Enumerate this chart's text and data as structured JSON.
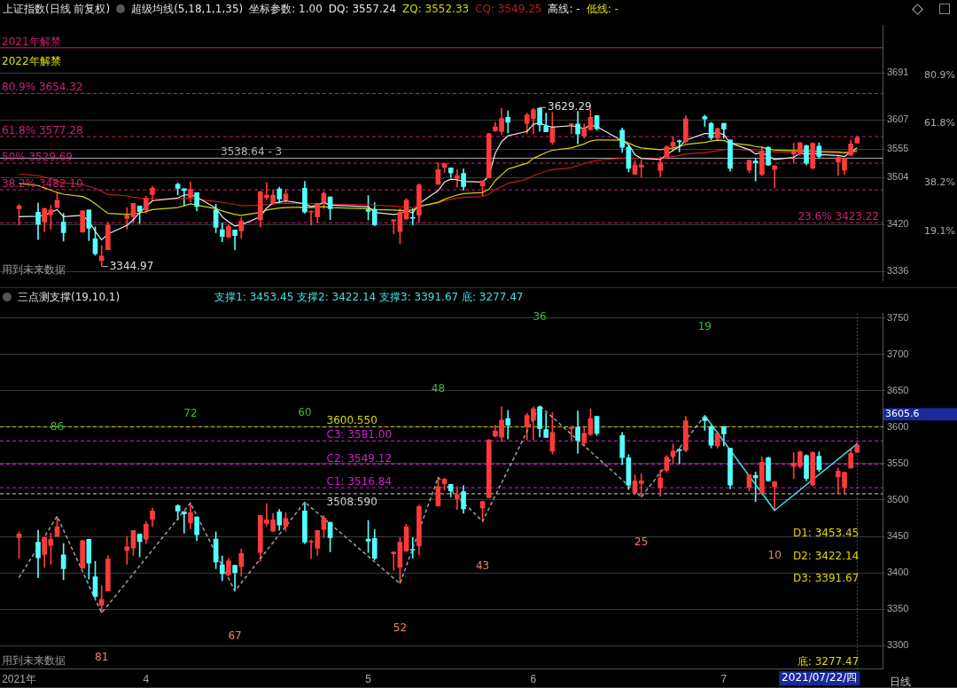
{
  "chart_data": [
    {
      "type": "candlestick",
      "title": "上证指数(日线 前复权)",
      "subtitle": "超级均线(5,18,1,1,35)",
      "x": [
        "2021-03-12",
        "2021-03-15",
        "2021-03-16",
        "2021-03-17",
        "2021-03-18",
        "2021-03-19",
        "2021-03-22",
        "2021-03-23",
        "2021-03-24",
        "2021-03-25",
        "2021-03-26",
        "2021-03-29",
        "2021-03-30",
        "2021-03-31",
        "2021-04-01",
        "2021-04-02",
        "2021-04-06",
        "2021-04-07",
        "2021-04-08",
        "2021-04-09",
        "2021-04-12",
        "2021-04-13",
        "2021-04-14",
        "2021-04-15",
        "2021-04-16",
        "2021-04-19",
        "2021-04-20",
        "2021-04-21",
        "2021-04-22",
        "2021-04-23",
        "2021-04-26",
        "2021-04-27",
        "2021-04-28",
        "2021-04-29",
        "2021-04-30",
        "2021-05-06",
        "2021-05-07",
        "2021-05-10",
        "2021-05-11",
        "2021-05-12",
        "2021-05-13",
        "2021-05-14",
        "2021-05-17",
        "2021-05-18",
        "2021-05-19",
        "2021-05-20",
        "2021-05-21",
        "2021-05-24",
        "2021-05-25",
        "2021-05-26",
        "2021-05-27",
        "2021-05-28",
        "2021-05-31",
        "2021-06-01",
        "2021-06-02",
        "2021-06-03",
        "2021-06-04",
        "2021-06-07",
        "2021-06-08",
        "2021-06-09",
        "2021-06-10",
        "2021-06-11",
        "2021-06-15",
        "2021-06-16",
        "2021-06-17",
        "2021-06-18",
        "2021-06-21",
        "2021-06-22",
        "2021-06-23",
        "2021-06-24",
        "2021-06-25",
        "2021-06-28",
        "2021-06-29",
        "2021-06-30",
        "2021-07-01",
        "2021-07-02",
        "2021-07-05",
        "2021-07-06",
        "2021-07-07",
        "2021-07-08",
        "2021-07-09",
        "2021-07-12",
        "2021-07-13",
        "2021-07-14",
        "2021-07-15",
        "2021-07-16",
        "2021-07-19",
        "2021-07-20",
        "2021-07-21",
        "2021-07-22"
      ],
      "xlim": [
        "2021-03-09",
        "2021-07-26"
      ],
      "ohlc": [
        [
          3448.3,
          3456.5,
          3419.9,
          3453.2
        ],
        [
          3442.2,
          3458.5,
          3393.4,
          3420.7
        ],
        [
          3425.1,
          3449.5,
          3407.7,
          3448.3
        ],
        [
          3437.7,
          3454.4,
          3411.7,
          3445.9
        ],
        [
          3450.3,
          3477.6,
          3450.3,
          3463.4
        ],
        [
          3424.7,
          3440.2,
          3390.6,
          3405.6
        ],
        [
          3406.8,
          3445.1,
          3405.6,
          3444.3
        ],
        [
          3445.9,
          3445.9,
          3391.4,
          3413.4
        ],
        [
          3394.7,
          3415.8,
          3365.0,
          3367.8
        ],
        [
          3355.6,
          3382.5,
          3344.97,
          3363.7
        ],
        [
          3375.1,
          3423.9,
          3375.1,
          3419.0
        ],
        [
          3430.8,
          3450.3,
          3411.7,
          3436.1
        ],
        [
          3434.1,
          3458.1,
          3423.9,
          3458.1
        ],
        [
          3453.2,
          3453.2,
          3421.9,
          3443.0
        ],
        [
          3446.3,
          3470.7,
          3440.2,
          3466.6
        ],
        [
          3473.5,
          3489.0,
          3463.8,
          3484.9
        ],
        [
          3492.2,
          3493.9,
          3472.7,
          3484.9
        ],
        [
          3484.1,
          3484.1,
          3454.4,
          3480.8
        ],
        [
          3468.7,
          3495.9,
          3460.5,
          3482.9
        ],
        [
          3476.8,
          3476.8,
          3444.3,
          3452.4
        ],
        [
          3446.3,
          3456.5,
          3405.6,
          3415.0
        ],
        [
          3410.9,
          3423.1,
          3389.4,
          3398.7
        ],
        [
          3397.5,
          3419.9,
          3395.5,
          3416.6
        ],
        [
          3410.5,
          3410.5,
          3375.1,
          3400.3
        ],
        [
          3408.5,
          3432.9,
          3395.5,
          3426.8
        ],
        [
          3428.0,
          3478.8,
          3415.8,
          3478.8
        ],
        [
          3467.8,
          3495.1,
          3464.6,
          3472.7
        ],
        [
          3457.3,
          3481.7,
          3456.5,
          3472.7
        ],
        [
          3483.7,
          3487.0,
          3458.5,
          3465.8
        ],
        [
          3463.8,
          3482.9,
          3457.3,
          3474.7
        ],
        [
          3484.9,
          3497.1,
          3440.2,
          3442.2
        ],
        [
          3442.2,
          3445.0,
          3419.0,
          3443.4
        ],
        [
          3433.7,
          3458.1,
          3423.9,
          3458.1
        ],
        [
          3459.7,
          3478.8,
          3448.3,
          3475.6
        ],
        [
          3469.5,
          3469.5,
          3428.8,
          3448.3
        ],
        [
          3446.3,
          3471.9,
          3428.0,
          3443.4
        ],
        [
          3447.1,
          3459.3,
          3417.8,
          3419.9
        ],
        [
          3426.0,
          3429.0,
          3403.6,
          3428.8
        ],
        [
          3407.7,
          3448.3,
          3385.3,
          3442.2
        ],
        [
          3430.0,
          3466.6,
          3428.8,
          3463.4
        ],
        [
          3432.1,
          3448.3,
          3419.9,
          3431.2
        ],
        [
          3436.9,
          3493.0,
          3424.7,
          3491.0
        ],
        [
          3491.8,
          3530.9,
          3491.8,
          3518.3
        ],
        [
          3522.3,
          3529.6,
          3513.4,
          3528.8
        ],
        [
          3521.5,
          3521.5,
          3504.4,
          3512.6
        ],
        [
          3502.0,
          3518.3,
          3486.9,
          3507.3
        ],
        [
          3511.3,
          3519.5,
          3481.7,
          3487.8
        ],
        [
          3489.0,
          3497.9,
          3470.7,
          3497.9
        ],
        [
          3503.2,
          3583.0,
          3503.2,
          3582.5
        ],
        [
          3587.8,
          3602.8,
          3586.6,
          3594.7
        ],
        [
          3586.6,
          3628.0,
          3580.5,
          3609.7
        ],
        [
          3611.8,
          3623.2,
          3583.7,
          3602.8
        ],
        [
          3600.8,
          3619.1,
          3582.5,
          3616.2
        ],
        [
          3609.7,
          3628.0,
          3582.5,
          3625.2
        ],
        [
          3628.0,
          3629.29,
          3586.6,
          3597.9
        ],
        [
          3596.7,
          3619.1,
          3585.8,
          3585.8
        ],
        [
          3567.0,
          3619.9,
          3563.0,
          3592.7
        ],
        [
          3597.9,
          3600.8,
          3582.5,
          3599.6
        ],
        [
          3599.6,
          3622.3,
          3564.2,
          3581.7
        ],
        [
          3578.4,
          3599.6,
          3574.4,
          3591.8
        ],
        [
          3589.8,
          3625.2,
          3588.6,
          3611.8
        ],
        [
          3615.0,
          3615.0,
          3588.6,
          3591.4
        ],
        [
          3588.6,
          3592.7,
          3548.8,
          3558.1
        ],
        [
          3558.1,
          3562.2,
          3514.2,
          3520.3
        ],
        [
          3510.1,
          3534.5,
          3509.3,
          3526.4
        ],
        [
          3522.7,
          3535.7,
          3504.0,
          3526.4
        ],
        [
          3516.6,
          3541.0,
          3505.2,
          3530.4
        ],
        [
          3540.6,
          3561.0,
          3537.8,
          3558.9
        ],
        [
          3560.1,
          3577.2,
          3550.8,
          3567.0
        ],
        [
          3569.1,
          3571.1,
          3550.0,
          3567.9
        ],
        [
          3568.3,
          3615.0,
          3566.2,
          3608.9
        ],
        [
          3613.0,
          3615.8,
          3595.5,
          3608.9
        ],
        [
          3600.8,
          3602.8,
          3571.5,
          3575.2
        ],
        [
          3574.4,
          3592.7,
          3571.1,
          3591.4
        ],
        [
          3600.8,
          3600.8,
          3574.4,
          3590.6
        ],
        [
          3571.1,
          3571.1,
          3515.4,
          3520.3
        ],
        [
          3517.4,
          3534.9,
          3512.6,
          3534.9
        ],
        [
          3533.7,
          3538.6,
          3497.9,
          3530.4
        ],
        [
          3509.3,
          3558.9,
          3507.3,
          3552.0
        ],
        [
          3558.1,
          3558.9,
          3525.6,
          3526.4
        ],
        [
          3518.3,
          3525.6,
          3485.7,
          3524.8
        ],
        [
          3545.9,
          3565.4,
          3529.6,
          3550.8
        ],
        [
          3545.9,
          3567.0,
          3543.9,
          3566.2
        ],
        [
          3561.0,
          3562.2,
          3526.4,
          3529.6
        ],
        [
          3520.7,
          3566.2,
          3519.5,
          3565.4
        ],
        [
          3560.1,
          3566.2,
          3538.6,
          3541.8
        ],
        [
          3531.7,
          3543.9,
          3508.1,
          3539.8
        ],
        [
          3517.4,
          3538.6,
          3509.3,
          3537.8
        ],
        [
          3543.9,
          3570.3,
          3543.9,
          3564.2
        ],
        [
          3565.4,
          3578.4,
          3565.4,
          3575.2
        ]
      ],
      "series": [
        {
          "type": "line",
          "name": "DQ: 3557.24",
          "color": "#e8e8e8",
          "line_style": "solid",
          "values": [
            3434.0,
            3435.0,
            3436.5,
            3441.7,
            3446.9,
            3434.0,
            3436.5,
            3426.2,
            3408.1,
            3392.6,
            3403.0,
            3418.5,
            3428.8,
            3441.7,
            3452.0,
            3462.4,
            3467.5,
            3472.7,
            3473.7,
            3469.1,
            3449.5,
            3434.0,
            3424.7,
            3417.4,
            3419.5,
            3434.0,
            3449.5,
            3458.8,
            3459.8,
            3462.4,
            3457.2,
            3452.0,
            3454.6,
            3459.8,
            3454.6,
            3452.0,
            3441.7,
            3438.1,
            3439.1,
            3445.3,
            3440.7,
            3457.2,
            3480.5,
            3496.0,
            3501.1,
            3500.1,
            3497.0,
            3496.0,
            3506.3,
            3547.6,
            3568.3,
            3578.6,
            3586.4,
            3599.3,
            3601.9,
            3596.7,
            3594.1,
            3596.7,
            3594.1,
            3591.5,
            3597.7,
            3595.1,
            null,
            3563.1,
            3545.0,
            3538.3,
            3536.3,
            3545.0,
            3552.8,
            3559.0,
            3570.9,
            3582.7,
            3582.7,
            3583.8,
            3581.2,
            3565.7,
            3553.8,
            3546.1,
            3548.7,
            3542.5,
            3536.3,
            3539.9,
            3547.6,
            3545.0,
            3547.6,
            3545.0,
            3543.5,
            3541.4,
            3550.2,
            3557.24
          ]
        },
        {
          "type": "line",
          "name": "ZQ: 3552.33",
          "color": "#d8d800",
          "line_style": "solid",
          "values": [
            3493.4,
            3489.8,
            3485.6,
            3481.5,
            3477.4,
            3474.3,
            3470.1,
            3465.0,
            3457.2,
            3448.4,
            3440.2,
            3438.1,
            3439.1,
            3440.7,
            3443.3,
            3446.9,
            3450.5,
            3453.6,
            3457.2,
            3454.6,
            3448.4,
            3444.3,
            3441.2,
            3438.1,
            3436.5,
            3441.7,
            3445.9,
            3447.9,
            3449.5,
            3450.5,
            3451.0,
            3450.5,
            3451.0,
            3452.0,
            3450.5,
            3448.4,
            3446.9,
            3445.9,
            3445.3,
            3445.3,
            3445.9,
            3452.0,
            3459.8,
            3465.0,
            3469.1,
            3472.7,
            3475.3,
            3477.4,
            3483.0,
            3498.5,
            3508.9,
            3519.2,
            3529.5,
            3538.3,
            3543.5,
            3548.7,
            3552.8,
            3556.9,
            3560.5,
            3564.1,
            3569.3,
            3571.4,
            3570.9,
            3565.7,
            3560.5,
            3556.9,
            3553.8,
            3555.4,
            3556.9,
            3559.0,
            3563.1,
            3566.7,
            3569.3,
            3570.9,
            3570.4,
            3565.7,
            3562.1,
            3559.5,
            3558.0,
            3555.4,
            3552.8,
            3552.3,
            3551.7,
            3551.7,
            3551.2,
            3550.7,
            3549.7,
            3548.7,
            3549.7,
            3552.33
          ]
        },
        {
          "type": "line",
          "name": "CQ: 3549.25",
          "color": "#c01c1c",
          "line_style": "solid",
          "values": [
            3510.4,
            3507.3,
            3504.7,
            3502.2,
            3497.5,
            3494.4,
            3491.8,
            3488.2,
            3484.6,
            3479.4,
            3473.7,
            3471.2,
            3469.1,
            3467.5,
            3466.5,
            3466.0,
            3466.0,
            3466.5,
            3467.5,
            3465.0,
            3461.3,
            3459.8,
            3457.7,
            3455.7,
            3453.6,
            3454.6,
            3455.7,
            3456.7,
            3457.7,
            3458.2,
            3457.7,
            3457.2,
            3457.2,
            3457.2,
            3456.7,
            3455.7,
            3454.6,
            3453.1,
            3452.0,
            3451.0,
            3450.5,
            3453.6,
            3458.2,
            3462.4,
            3465.0,
            3467.0,
            3468.6,
            3470.1,
            3474.3,
            3483.0,
            3488.2,
            3493.4,
            3501.1,
            3507.3,
            3511.5,
            3515.1,
            3518.2,
            3521.8,
            3525.4,
            3529.0,
            3532.1,
            3535.2,
            3538.3,
            3539.4,
            3538.8,
            3538.3,
            3538.8,
            3539.9,
            3541.4,
            3543.5,
            3546.1,
            3548.7,
            3550.2,
            3551.7,
            3553.8,
            3554.3,
            3553.3,
            3551.7,
            3550.7,
            3550.2,
            3549.7,
            3549.2,
            3548.7,
            3548.1,
            3547.6,
            3547.6,
            3547.6,
            3547.6,
            3548.1,
            3549.25
          ]
        }
      ],
      "ylim": [
        3320,
        3776
      ],
      "yticks": [
        3336,
        3420,
        3504,
        3555,
        3607,
        3691
      ],
      "y2lim": [
        -0.4,
        100.6
      ],
      "y2ticks": [
        {
          "value": 19.1,
          "label": "19.1%"
        },
        {
          "value": 38.2,
          "label": "38.2%"
        },
        {
          "value": 61.8,
          "label": "61.8%"
        },
        {
          "value": 80.9,
          "label": "80.9%"
        }
      ],
      "ref_lines": [
        {
          "axis": "y",
          "value": 3736,
          "label": "2021年解禁",
          "color": "#c8206e",
          "line_style": "solid"
        },
        {
          "axis": "y",
          "value": 3654.32,
          "label": "80.9% 3654.32",
          "color": "#d0207a",
          "line_style": "dashed"
        },
        {
          "axis": "y",
          "value": 3577.28,
          "label": "61.8% 3577.28",
          "color": "#d0207a",
          "line_style": "dashed"
        },
        {
          "axis": "y",
          "value": 3529.69,
          "label": "50% 3529.69",
          "color": "#d0207a",
          "line_style": "dashed"
        },
        {
          "axis": "y",
          "value": 3482.1,
          "label": "38.2% 3482.10",
          "color": "#d0207a",
          "line_style": "dashed"
        },
        {
          "axis": "y",
          "value": 3423.22,
          "label": "23.6% 3423.22",
          "color": "#d0207a",
          "line_style": "dashed"
        },
        {
          "axis": "y",
          "value": 3538.64,
          "label": "3538.64 - 3",
          "color": "#b0b0b0",
          "line_style": "solid"
        }
      ],
      "annotations": [
        "坐标参数: 1.00",
        "高线: -",
        "低线: -",
        "2022年解禁",
        "用到未来数据",
        {
          "text": "3629.29",
          "x": "2021-06-02",
          "y": 3629.29
        },
        {
          "text": "3344.97",
          "x": "2021-03-25",
          "y": 3344.97
        }
      ],
      "grid": "y",
      "legend": "top left",
      "marker": "none",
      "tick_labels": "y"
    },
    {
      "type": "candlestick",
      "title": "三点测支撑(19,10,1)",
      "subtitle": "支撑1: 3453.45 支撑2: 3422.14 支撑3: 3391.67 底: 3277.47",
      "x": [
        "2021-03-12",
        "2021-03-15",
        "2021-03-16",
        "2021-03-17",
        "2021-03-18",
        "2021-03-19",
        "2021-03-22",
        "2021-03-23",
        "2021-03-24",
        "2021-03-25",
        "2021-03-26",
        "2021-03-29",
        "2021-03-30",
        "2021-03-31",
        "2021-04-01",
        "2021-04-02",
        "2021-04-06",
        "2021-04-07",
        "2021-04-08",
        "2021-04-09",
        "2021-04-12",
        "2021-04-13",
        "2021-04-14",
        "2021-04-15",
        "2021-04-16",
        "2021-04-19",
        "2021-04-20",
        "2021-04-21",
        "2021-04-22",
        "2021-04-23",
        "2021-04-26",
        "2021-04-27",
        "2021-04-28",
        "2021-04-29",
        "2021-04-30",
        "2021-05-06",
        "2021-05-07",
        "2021-05-10",
        "2021-05-11",
        "2021-05-12",
        "2021-05-13",
        "2021-05-14",
        "2021-05-17",
        "2021-05-18",
        "2021-05-19",
        "2021-05-20",
        "2021-05-21",
        "2021-05-24",
        "2021-05-25",
        "2021-05-26",
        "2021-05-27",
        "2021-05-28",
        "2021-05-31",
        "2021-06-01",
        "2021-06-02",
        "2021-06-03",
        "2021-06-04",
        "2021-06-07",
        "2021-06-08",
        "2021-06-09",
        "2021-06-10",
        "2021-06-11",
        "2021-06-15",
        "2021-06-16",
        "2021-06-17",
        "2021-06-18",
        "2021-06-21",
        "2021-06-22",
        "2021-06-23",
        "2021-06-24",
        "2021-06-25",
        "2021-06-28",
        "2021-06-29",
        "2021-06-30",
        "2021-07-01",
        "2021-07-02",
        "2021-07-05",
        "2021-07-06",
        "2021-07-07",
        "2021-07-08",
        "2021-07-09",
        "2021-07-12",
        "2021-07-13",
        "2021-07-14",
        "2021-07-15",
        "2021-07-16",
        "2021-07-19",
        "2021-07-20",
        "2021-07-21",
        "2021-07-22"
      ],
      "xlim": [
        "2021-03-09",
        "2021-07-26"
      ],
      "xticks": [
        {
          "value": "2021-03-12",
          "label": "2021年"
        },
        {
          "value": "2021-04-01",
          "label": "4"
        },
        {
          "value": "2021-05-06",
          "label": "5"
        },
        {
          "value": "2021-06-01",
          "label": "6"
        },
        {
          "value": "2021-07-01",
          "label": "7"
        }
      ],
      "ohlc": [
        [
          3448.3,
          3456.5,
          3419.9,
          3453.2
        ],
        [
          3442.2,
          3458.5,
          3393.4,
          3420.7
        ],
        [
          3425.1,
          3449.5,
          3407.7,
          3448.3
        ],
        [
          3437.7,
          3454.4,
          3411.7,
          3445.9
        ],
        [
          3450.3,
          3477.6,
          3450.3,
          3463.4
        ],
        [
          3424.7,
          3440.2,
          3390.6,
          3405.6
        ],
        [
          3406.8,
          3445.1,
          3405.6,
          3444.3
        ],
        [
          3445.9,
          3445.9,
          3391.4,
          3413.4
        ],
        [
          3394.7,
          3415.8,
          3365.0,
          3367.8
        ],
        [
          3355.6,
          3382.5,
          3344.97,
          3363.7
        ],
        [
          3375.1,
          3423.9,
          3375.1,
          3419.0
        ],
        [
          3430.8,
          3450.3,
          3411.7,
          3436.1
        ],
        [
          3434.1,
          3458.1,
          3423.9,
          3458.1
        ],
        [
          3453.2,
          3453.2,
          3421.9,
          3443.0
        ],
        [
          3446.3,
          3470.7,
          3440.2,
          3466.6
        ],
        [
          3473.5,
          3489.0,
          3463.8,
          3484.9
        ],
        [
          3492.2,
          3493.9,
          3472.7,
          3484.9
        ],
        [
          3484.1,
          3484.1,
          3454.4,
          3480.8
        ],
        [
          3468.7,
          3495.9,
          3460.5,
          3482.9
        ],
        [
          3476.8,
          3476.8,
          3444.3,
          3452.4
        ],
        [
          3446.3,
          3456.5,
          3405.6,
          3415.0
        ],
        [
          3410.9,
          3423.1,
          3389.4,
          3398.7
        ],
        [
          3397.5,
          3419.9,
          3395.5,
          3416.6
        ],
        [
          3410.5,
          3410.5,
          3375.1,
          3400.3
        ],
        [
          3408.5,
          3432.9,
          3395.5,
          3426.8
        ],
        [
          3428.0,
          3478.8,
          3415.8,
          3478.8
        ],
        [
          3467.8,
          3495.1,
          3464.6,
          3472.7
        ],
        [
          3457.3,
          3481.7,
          3456.5,
          3472.7
        ],
        [
          3483.7,
          3487.0,
          3458.5,
          3465.8
        ],
        [
          3463.8,
          3482.9,
          3457.3,
          3474.7
        ],
        [
          3484.9,
          3497.1,
          3440.2,
          3442.2
        ],
        [
          3442.2,
          3445.0,
          3419.0,
          3443.4
        ],
        [
          3433.7,
          3458.1,
          3423.9,
          3458.1
        ],
        [
          3459.7,
          3478.8,
          3448.3,
          3475.6
        ],
        [
          3469.5,
          3469.5,
          3428.8,
          3448.3
        ],
        [
          3446.3,
          3471.9,
          3428.0,
          3443.4
        ],
        [
          3447.1,
          3459.3,
          3417.8,
          3419.9
        ],
        [
          3426.0,
          3429.0,
          3403.6,
          3428.8
        ],
        [
          3407.7,
          3448.3,
          3385.3,
          3442.2
        ],
        [
          3430.0,
          3466.6,
          3428.8,
          3463.4
        ],
        [
          3432.1,
          3448.3,
          3419.9,
          3431.2
        ],
        [
          3436.9,
          3493.0,
          3424.7,
          3491.0
        ],
        [
          3491.8,
          3530.9,
          3491.8,
          3518.3
        ],
        [
          3522.3,
          3529.6,
          3513.4,
          3528.8
        ],
        [
          3521.5,
          3521.5,
          3504.4,
          3512.6
        ],
        [
          3502.0,
          3518.3,
          3486.9,
          3507.3
        ],
        [
          3511.3,
          3519.5,
          3481.7,
          3487.8
        ],
        [
          3489.0,
          3497.9,
          3470.7,
          3497.9
        ],
        [
          3503.2,
          3583.0,
          3503.2,
          3582.5
        ],
        [
          3587.8,
          3602.8,
          3586.6,
          3594.7
        ],
        [
          3586.6,
          3628.0,
          3580.5,
          3609.7
        ],
        [
          3611.8,
          3623.2,
          3583.7,
          3602.8
        ],
        [
          3600.8,
          3619.1,
          3582.5,
          3616.2
        ],
        [
          3609.7,
          3628.0,
          3582.5,
          3625.2
        ],
        [
          3628.0,
          3629.29,
          3586.6,
          3597.9
        ],
        [
          3596.7,
          3619.1,
          3585.8,
          3585.8
        ],
        [
          3567.0,
          3619.9,
          3563.0,
          3592.7
        ],
        [
          3597.9,
          3600.8,
          3582.5,
          3599.6
        ],
        [
          3599.6,
          3622.3,
          3564.2,
          3581.7
        ],
        [
          3578.4,
          3599.6,
          3574.4,
          3591.8
        ],
        [
          3589.8,
          3625.2,
          3588.6,
          3611.8
        ],
        [
          3615.0,
          3615.0,
          3588.6,
          3591.4
        ],
        [
          3588.6,
          3592.7,
          3548.8,
          3558.1
        ],
        [
          3558.1,
          3562.2,
          3514.2,
          3520.3
        ],
        [
          3510.1,
          3534.5,
          3509.3,
          3526.4
        ],
        [
          3522.7,
          3535.7,
          3504.0,
          3526.4
        ],
        [
          3516.6,
          3541.0,
          3505.2,
          3530.4
        ],
        [
          3540.6,
          3561.0,
          3537.8,
          3558.9
        ],
        [
          3560.1,
          3577.2,
          3550.8,
          3567.0
        ],
        [
          3569.1,
          3571.1,
          3550.0,
          3567.9
        ],
        [
          3568.3,
          3615.0,
          3566.2,
          3608.9
        ],
        [
          3613.0,
          3615.8,
          3595.5,
          3608.9
        ],
        [
          3600.8,
          3602.8,
          3571.5,
          3575.2
        ],
        [
          3574.4,
          3592.7,
          3571.1,
          3591.4
        ],
        [
          3600.8,
          3600.8,
          3574.4,
          3590.6
        ],
        [
          3571.1,
          3571.1,
          3515.4,
          3520.3
        ],
        [
          3517.4,
          3534.9,
          3512.6,
          3534.9
        ],
        [
          3533.7,
          3538.6,
          3497.9,
          3530.4
        ],
        [
          3509.3,
          3558.9,
          3507.3,
          3552.0
        ],
        [
          3558.1,
          3558.9,
          3525.6,
          3526.4
        ],
        [
          3518.3,
          3525.6,
          3485.7,
          3524.8
        ],
        [
          3545.9,
          3565.4,
          3529.6,
          3550.8
        ],
        [
          3545.9,
          3567.0,
          3543.9,
          3566.2
        ],
        [
          3561.0,
          3562.2,
          3526.4,
          3529.6
        ],
        [
          3520.7,
          3566.2,
          3519.5,
          3565.4
        ],
        [
          3560.1,
          3566.2,
          3538.6,
          3541.8
        ],
        [
          3531.7,
          3543.9,
          3508.1,
          3539.8
        ],
        [
          3517.4,
          3538.6,
          3509.3,
          3537.8
        ],
        [
          3543.9,
          3570.3,
          3543.9,
          3564.2
        ],
        [
          3565.4,
          3578.4,
          3565.4,
          3575.2
        ]
      ],
      "series": [
        {
          "type": "line",
          "color": "#a0a0a0",
          "line_style": "dashed",
          "x": [
            "2021-03-12",
            "2021-03-18",
            "2021-03-25",
            "2021-04-08",
            "2021-04-15",
            "2021-04-26",
            "2021-05-11",
            "2021-05-17",
            "2021-05-24",
            "2021-06-02",
            "2021-06-18",
            "2021-06-28"
          ],
          "values": [
            3393.4,
            3477.6,
            3344.97,
            3495.9,
            3375.1,
            3497.1,
            3385.3,
            3530.9,
            3470.7,
            3629.29,
            3504.0,
            3615.8
          ]
        },
        {
          "type": "line",
          "color": "#40e0e8",
          "line_style": "solid",
          "x": [
            "2021-06-28",
            "2021-07-09",
            "2021-07-22"
          ],
          "values": [
            3615.8,
            3485.7,
            3577.2
          ]
        }
      ],
      "ylim": [
        3268,
        3756
      ],
      "yticks": [
        3300,
        3350,
        3400,
        3450,
        3500,
        3550,
        3600,
        3650,
        3700,
        3750
      ],
      "ref_lines": [
        {
          "axis": "y",
          "value": 3600.55,
          "label": "3600.550",
          "color": "#d8d800",
          "line_style": "dashed"
        },
        {
          "axis": "y",
          "value": 3581.0,
          "label": "C3: 3581.00",
          "color": "#d020d0",
          "line_style": "dashed"
        },
        {
          "axis": "y",
          "value": 3549.12,
          "label": "C2: 3549.12",
          "color": "#d020d0",
          "line_style": "dashed"
        },
        {
          "axis": "y",
          "value": 3516.84,
          "label": "C1: 3516.84",
          "color": "#d020d0",
          "line_style": "dashed"
        },
        {
          "axis": "y",
          "value": 3508.59,
          "label": "3508.590",
          "color": "#d0d0d0",
          "line_style": "dashed"
        },
        {
          "axis": "x",
          "value": "2021-07-22",
          "color": "#40c0c0",
          "line_style": "dotted"
        }
      ],
      "annotations": [
        "用到未来数据",
        "日线",
        "3605.6",
        "2021/07/22/四",
        "86",
        "81",
        "72",
        "67",
        "60",
        "52",
        "48",
        "43",
        "36",
        "25",
        "19",
        "10",
        {
          "text": "D1: 3453.45",
          "x": "2021-07-22",
          "y": 3453.45
        },
        {
          "text": "D2: 3422.14",
          "x": "2021-07-22",
          "y": 3422.14
        },
        {
          "text": "D3: 3391.67",
          "x": "2021-07-22",
          "y": 3391.67
        },
        {
          "text": "底: 3277.47",
          "x": "2021-07-22",
          "y": 3277.47
        }
      ],
      "grid": "y",
      "marker": "none"
    }
  ]
}
